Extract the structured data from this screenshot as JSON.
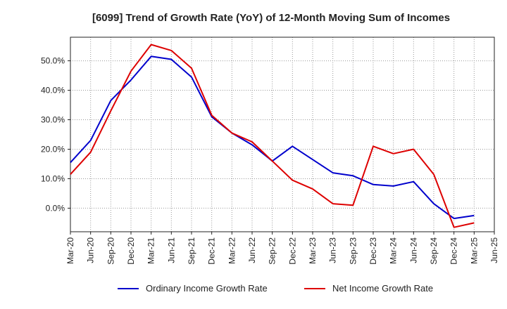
{
  "chart_data": {
    "type": "line",
    "title": "[6099]  Trend of Growth Rate (YoY) of 12-Month Moving Sum of Incomes",
    "xlabel": "",
    "ylabel": "",
    "categories": [
      "Mar-20",
      "Jun-20",
      "Sep-20",
      "Dec-20",
      "Mar-21",
      "Jun-21",
      "Sep-21",
      "Dec-21",
      "Mar-22",
      "Jun-22",
      "Sep-22",
      "Dec-22",
      "Mar-23",
      "Jun-23",
      "Sep-23",
      "Dec-23",
      "Mar-24",
      "Jun-24",
      "Sep-24",
      "Dec-24",
      "Mar-25",
      "Jun-25"
    ],
    "ylim": [
      -8,
      58
    ],
    "yticks": [
      0,
      10,
      20,
      30,
      40,
      50
    ],
    "ytick_labels": [
      "0.0%",
      "10.0%",
      "20.0%",
      "30.0%",
      "40.0%",
      "50.0%"
    ],
    "grid": true,
    "legend_position": "bottom",
    "series": [
      {
        "name": "Ordinary Income Growth Rate",
        "color": "#0000cc",
        "values": [
          15.5,
          23.0,
          36.5,
          43.5,
          51.5,
          50.5,
          44.5,
          31.0,
          25.5,
          21.5,
          16.0,
          21.0,
          16.5,
          12.0,
          11.0,
          8.0,
          7.5,
          9.0,
          1.5,
          -3.5,
          -2.5,
          null
        ]
      },
      {
        "name": "Net Income Growth Rate",
        "color": "#dd0000",
        "values": [
          11.5,
          19.0,
          33.0,
          46.5,
          55.5,
          53.5,
          47.5,
          31.5,
          25.5,
          22.5,
          16.0,
          9.5,
          6.5,
          1.5,
          1.0,
          21.0,
          18.5,
          20.0,
          11.5,
          -6.5,
          -5.0,
          null
        ]
      }
    ]
  }
}
